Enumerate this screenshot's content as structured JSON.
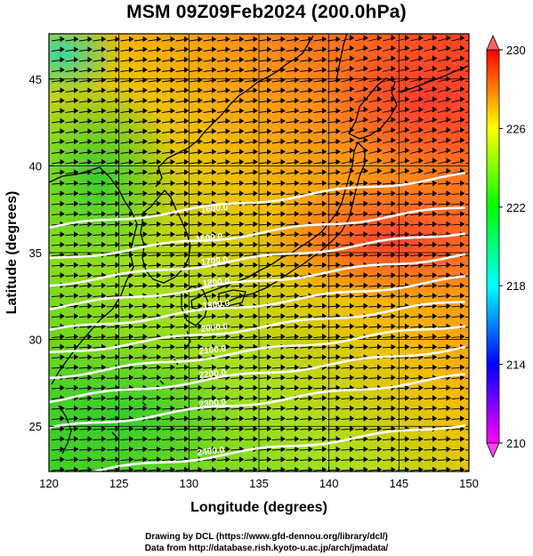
{
  "title": "MSM 09Z09Feb2024 (200.0hPa)",
  "axes": {
    "xlabel": "Longitude (degrees)",
    "ylabel": "Latitude  (degrees)",
    "xticks": [
      "120",
      "125",
      "130",
      "135",
      "140",
      "145",
      "150"
    ],
    "yticks": [
      "25",
      "30",
      "35",
      "40",
      "45"
    ]
  },
  "colorbar": {
    "ticks": [
      "210",
      "214",
      "218",
      "222",
      "226",
      "230"
    ],
    "colors": [
      "#ff00ff",
      "#0000ff",
      "#00ffff",
      "#00ff00",
      "#ffff00",
      "#ff0000"
    ]
  },
  "contour_labels": [
    "1600.0",
    "1600.0",
    "1700.0",
    "1800.0",
    "1900.0",
    "2000.0",
    "2100.0",
    "2200.0",
    "2300.0",
    "2400.0"
  ],
  "credits": {
    "line1": "Drawing by DCL (https://www.gfd-dennou.org/library/dcl/)",
    "line2": "Data from http://database.rish.kyoto-u.ac.jp/arch/jmadata/"
  },
  "chart_data": {
    "type": "heatmap",
    "title": "MSM 09Z09Feb2024 (200.0hPa)",
    "xlabel": "Longitude (degrees)",
    "ylabel": "Latitude  (degrees)",
    "xlim": [
      120,
      150
    ],
    "ylim": [
      22.4,
      47.6
    ],
    "color_range": [
      210,
      230
    ],
    "grid": true,
    "layers": [
      "temperature shading",
      "wind vectors",
      "height contours",
      "coastlines"
    ]
  }
}
